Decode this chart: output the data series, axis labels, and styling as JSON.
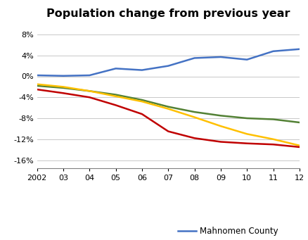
{
  "title": "Population change from previous year",
  "years": [
    2002,
    2003,
    2004,
    2005,
    2006,
    2007,
    2008,
    2009,
    2010,
    2011,
    2012
  ],
  "series": {
    "Mahnomen County": {
      "values": [
        0.2,
        0.1,
        0.2,
        1.5,
        1.2,
        2.0,
        3.5,
        3.7,
        3.2,
        4.8,
        5.2
      ],
      "color": "#4472C4"
    },
    "Lincoln County": {
      "values": [
        -1.8,
        -2.2,
        -2.8,
        -3.5,
        -4.5,
        -5.8,
        -6.8,
        -7.5,
        -8.0,
        -8.2,
        -8.8
      ],
      "color": "#538135"
    },
    "Traverse County": {
      "values": [
        -1.5,
        -2.0,
        -2.8,
        -3.8,
        -4.8,
        -6.2,
        -7.8,
        -9.5,
        -11.0,
        -12.0,
        -13.2
      ],
      "color": "#FFC000"
    },
    "Kittson County": {
      "values": [
        -2.5,
        -3.2,
        -4.0,
        -5.5,
        -7.2,
        -10.5,
        -11.8,
        -12.5,
        -12.8,
        -13.0,
        -13.5
      ],
      "color": "#C00000"
    }
  },
  "xlim": [
    2002,
    2012
  ],
  "ylim_bottom": -17.5,
  "ylim_top": 10,
  "yticks": [
    -16,
    -12,
    -8,
    -4,
    0,
    4,
    8
  ],
  "xtick_labels": [
    "2002",
    "03",
    "04",
    "05",
    "06",
    "07",
    "08",
    "09",
    "10",
    "11",
    "12"
  ],
  "background_color": "#FFFFFF",
  "grid_color": "#BFBFBF",
  "title_fontsize": 11.5,
  "tick_fontsize": 8,
  "legend_fontsize": 8.5
}
